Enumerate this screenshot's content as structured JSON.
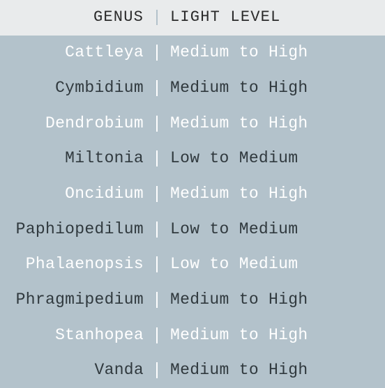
{
  "table": {
    "type": "table",
    "header_bg": "#e9ebec",
    "body_bg": "#b3c2cb",
    "divider_color": "#ffffff",
    "header_divider_color": "#b3c2cb",
    "text_dark": "#30393e",
    "text_light": "#ffffff",
    "header_text_color": "#2a2a2a",
    "columns": [
      {
        "label": "GENUS",
        "align": "right"
      },
      {
        "label": "LIGHT LEVEL",
        "align": "left"
      }
    ],
    "rows": [
      {
        "genus": "Cattleya",
        "light": "Medium to High",
        "color": "light"
      },
      {
        "genus": "Cymbidium",
        "light": "Medium to High",
        "color": "dark"
      },
      {
        "genus": "Dendrobium",
        "light": "Medium to High",
        "color": "light"
      },
      {
        "genus": "Miltonia",
        "light": "Low to Medium",
        "color": "dark"
      },
      {
        "genus": "Oncidium",
        "light": "Medium to High",
        "color": "light"
      },
      {
        "genus": "Paphiopedilum",
        "light": "Low to Medium",
        "color": "dark"
      },
      {
        "genus": "Phalaenopsis",
        "light": "Low to Medium",
        "color": "light"
      },
      {
        "genus": "Phragmipedium",
        "light": "Medium to High",
        "color": "dark"
      },
      {
        "genus": "Stanhopea",
        "light": "Medium to High",
        "color": "light"
      },
      {
        "genus": "Vanda",
        "light": "Medium to High",
        "color": "dark"
      }
    ]
  }
}
